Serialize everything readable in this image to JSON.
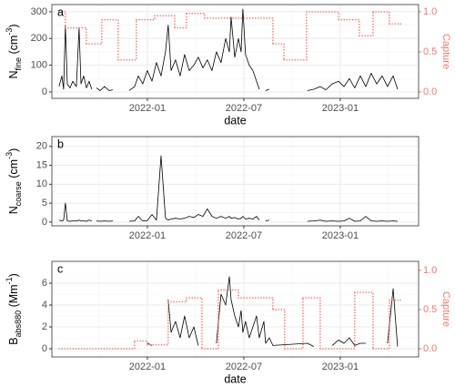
{
  "chart_data": [
    {
      "type": "line",
      "panel_label": "a",
      "y_label": {
        "base": "N",
        "sub": "fine",
        "unit": " (cm",
        "sup": "-3",
        "end": ")"
      },
      "x_label": "date",
      "y2_label": "Capture",
      "xlim": [
        2021.505,
        2023.406
      ],
      "xticks": [
        {
          "value": 2022.0,
          "label": "2022-01"
        },
        {
          "value": 2022.5,
          "label": "2022-07"
        },
        {
          "value": 2023.0,
          "label": "2023-01"
        }
      ],
      "xminor": [
        2021.75,
        2022.25,
        2022.75,
        2023.25
      ],
      "ylim": [
        -24,
        327
      ],
      "yticks": [
        0,
        100,
        200,
        300
      ],
      "yminor": [
        50,
        150,
        250
      ],
      "y2lim": [
        -0.08,
        1.09
      ],
      "y2ticks": [
        {
          "value": 0,
          "label": "0.0"
        },
        {
          "value": 0.5,
          "label": "0.5"
        },
        {
          "value": 1,
          "label": "1.0"
        }
      ],
      "grid": true,
      "series": [
        {
          "color": "#000000",
          "x": [
            2021.542,
            2021.557,
            2021.566,
            2021.575,
            2021.585,
            2021.599,
            2021.613,
            2021.632,
            2021.646,
            2021.656,
            2021.67,
            2021.684,
            2021.698,
            2021.712,
            2021.722,
            2021.736,
            2021.755,
            2021.778,
            2021.802,
            2021.821,
            2021.849,
            2021.906,
            2021.934,
            2021.953,
            2021.976,
            2022.0,
            2022.024,
            2022.047,
            2022.071,
            2022.094,
            2022.108,
            2022.123,
            2022.146,
            2022.17,
            2022.193,
            2022.217,
            2022.241,
            2022.264,
            2022.288,
            2022.311,
            2022.335,
            2022.358,
            2022.382,
            2022.406,
            2022.425,
            2022.434,
            2022.453,
            2022.472,
            2022.486,
            2022.495,
            2022.509,
            2022.528,
            2022.547,
            2022.566,
            2022.58,
            2022.604,
            2022.613,
            2022.632,
            2022.651,
            2022.83,
            2022.863,
            2022.896,
            2022.925,
            2022.958,
            2022.991,
            2023.019,
            2023.047,
            2023.075,
            2023.104,
            2023.132,
            2023.16,
            2023.189,
            2023.217,
            2023.245,
            2023.274,
            2023.297
          ],
          "values": [
            20,
            60,
            10,
            250,
            30,
            15,
            40,
            20,
            240,
            30,
            60,
            15,
            40,
            10,
            null,
            15,
            5,
            20,
            5,
            8,
            null,
            5,
            20,
            60,
            30,
            80,
            40,
            110,
            60,
            150,
            250,
            80,
            120,
            60,
            140,
            80,
            100,
            130,
            90,
            120,
            80,
            150,
            110,
            200,
            150,
            280,
            130,
            200,
            150,
            310,
            140,
            100,
            80,
            40,
            10,
            null,
            5,
            10,
            null,
            5,
            10,
            20,
            8,
            30,
            40,
            20,
            50,
            15,
            60,
            20,
            70,
            30,
            60,
            20,
            60,
            10
          ]
        },
        {
          "color": "#f8766d",
          "axis": "y2",
          "step": "post",
          "x": [
            2021.542,
            2021.575,
            2021.684,
            2021.764,
            2021.849,
            2021.943,
            2022.038,
            2022.142,
            2022.203,
            2022.297,
            2022.651,
            2022.708,
            2022.825,
            2022.991,
            2023.099,
            2023.17,
            2023.255,
            2023.311
          ],
          "values": [
            1.0,
            0.8,
            0.6,
            0.9,
            0.4,
            0.9,
            0.95,
            0.8,
            0.98,
            0.92,
            0.6,
            0.4,
            1.0,
            0.9,
            0.7,
            1.0,
            0.85,
            0.85
          ]
        }
      ]
    },
    {
      "type": "line",
      "panel_label": "b",
      "y_label": {
        "base": "N",
        "sub": "coarse",
        "unit": " (cm",
        "sup": "-3",
        "end": ")"
      },
      "xlim": [
        2021.505,
        2023.406
      ],
      "xticks": [
        {
          "value": 2022.0,
          "label": "2022-01"
        },
        {
          "value": 2022.5,
          "label": "2022-07"
        },
        {
          "value": 2023.0,
          "label": "2023-01"
        }
      ],
      "xminor": [
        2021.75,
        2022.25,
        2022.75,
        2023.25
      ],
      "ylim": [
        -1.0,
        22.6
      ],
      "yticks": [
        0,
        5,
        10,
        15,
        20
      ],
      "yminor": [
        2.5,
        7.5,
        12.5,
        17.5
      ],
      "grid": true,
      "series": [
        {
          "color": "#000000",
          "x": [
            2021.542,
            2021.557,
            2021.566,
            2021.575,
            2021.585,
            2021.599,
            2021.613,
            2021.632,
            2021.646,
            2021.656,
            2021.67,
            2021.684,
            2021.698,
            2021.712,
            2021.722,
            2021.736,
            2021.755,
            2021.778,
            2021.802,
            2021.821,
            2021.849,
            2021.906,
            2021.934,
            2021.953,
            2021.976,
            2022.0,
            2022.024,
            2022.047,
            2022.071,
            2022.094,
            2022.108,
            2022.123,
            2022.146,
            2022.17,
            2022.193,
            2022.217,
            2022.241,
            2022.264,
            2022.288,
            2022.311,
            2022.335,
            2022.358,
            2022.382,
            2022.406,
            2022.425,
            2022.434,
            2022.453,
            2022.472,
            2022.486,
            2022.495,
            2022.509,
            2022.528,
            2022.547,
            2022.566,
            2022.58,
            2022.604,
            2022.613,
            2022.632,
            2022.651,
            2022.83,
            2022.863,
            2022.896,
            2022.925,
            2022.958,
            2022.991,
            2023.019,
            2023.047,
            2023.075,
            2023.104,
            2023.132,
            2023.16,
            2023.189,
            2023.217,
            2023.245,
            2023.274,
            2023.297
          ],
          "values": [
            0.5,
            0.3,
            0.5,
            5,
            0.3,
            0.2,
            0.3,
            0.3,
            0.5,
            0.3,
            0.3,
            0.2,
            0.5,
            0.3,
            null,
            0.3,
            0.2,
            0.3,
            0.2,
            0.3,
            null,
            0.2,
            0.3,
            1.5,
            0.3,
            0.4,
            2.0,
            0.5,
            17.5,
            1.0,
            0.5,
            0.8,
            1.0,
            0.8,
            1.0,
            1.5,
            1.2,
            2.0,
            1.5,
            3.5,
            1.5,
            1.0,
            1.5,
            1.0,
            1.5,
            1.0,
            1.2,
            0.8,
            1.0,
            1.5,
            0.8,
            1.0,
            0.8,
            1.5,
            0.5,
            null,
            0.3,
            0.5,
            null,
            0.2,
            0.3,
            0.5,
            0.2,
            0.3,
            0.2,
            0.3,
            1.0,
            0.2,
            0.3,
            1.5,
            0.3,
            0.2,
            0.3,
            0.2,
            0.3,
            0.2
          ]
        }
      ]
    },
    {
      "type": "line",
      "panel_label": "c",
      "y_label": {
        "base": "B",
        "sub": "abs880",
        "unit": " (Mm",
        "sup": "-1",
        "end": ")"
      },
      "x_label": "date",
      "y2_label": "Capture",
      "xlim": [
        2021.505,
        2023.406
      ],
      "xticks": [
        {
          "value": 2022.0,
          "label": "2022-01"
        },
        {
          "value": 2022.5,
          "label": "2022-07"
        },
        {
          "value": 2023.0,
          "label": "2023-01"
        }
      ],
      "xminor": [
        2021.75,
        2022.25,
        2022.75,
        2023.25
      ],
      "ylim": [
        -0.75,
        8.0
      ],
      "yticks": [
        0,
        2,
        4,
        6
      ],
      "yminor": [
        1,
        3,
        5,
        7
      ],
      "y2lim": [
        -0.105,
        1.116
      ],
      "y2ticks": [
        {
          "value": 0,
          "label": "0.0"
        },
        {
          "value": 0.5,
          "label": "0.5"
        },
        {
          "value": 1,
          "label": "1.0"
        }
      ],
      "grid": true,
      "series": [
        {
          "color": "#000000",
          "x": [
            2022.0,
            2022.024,
            2022.047,
            2022.108,
            2022.123,
            2022.146,
            2022.17,
            2022.193,
            2022.217,
            2022.241,
            2022.264,
            2022.288,
            2022.358,
            2022.382,
            2022.406,
            2022.425,
            2022.434,
            2022.453,
            2022.472,
            2022.486,
            2022.495,
            2022.509,
            2022.528,
            2022.547,
            2022.566,
            2022.58,
            2022.604,
            2022.613,
            2022.632,
            2022.651,
            2022.83,
            2022.863,
            2022.896,
            2022.958,
            2022.991,
            2023.019,
            2023.047,
            2023.075,
            2023.104,
            2023.132,
            2023.16,
            2023.245,
            2023.274,
            2023.297
          ],
          "values": [
            0.5,
            0.3,
            null,
            4.5,
            1.5,
            2.5,
            1.0,
            3.0,
            1.0,
            2.0,
            0.3,
            null,
            0.5,
            5.0,
            4.0,
            6.6,
            4.5,
            3.0,
            2.0,
            3.5,
            1.5,
            2.5,
            1.0,
            2.0,
            3.0,
            1.0,
            2.5,
            0.5,
            1.0,
            0.3,
            0.5,
            0.2,
            null,
            0.3,
            0.8,
            0.5,
            1.0,
            0.3,
            0.5,
            0.5,
            null,
            0.5,
            5.5,
            0.2
          ]
        },
        {
          "color": "#f8766d",
          "axis": "y2",
          "step": "post",
          "x": [
            2021.542,
            2021.934,
            2022.0,
            2022.108,
            2022.203,
            2022.283,
            2022.368,
            2022.472,
            2022.651,
            2022.712,
            2022.807,
            2022.896,
            2023.075,
            2023.17,
            2023.255,
            2023.311
          ],
          "values": [
            0,
            0.1,
            0.05,
            0.6,
            0.65,
            0.0,
            0.75,
            0.65,
            0.5,
            0.0,
            0.65,
            0.0,
            0.72,
            0.0,
            0.62,
            0.62
          ]
        }
      ]
    }
  ]
}
